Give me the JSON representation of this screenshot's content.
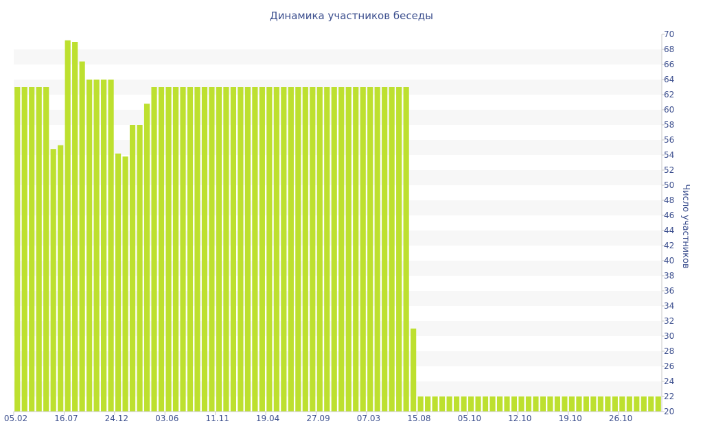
{
  "chart_data": {
    "type": "bar",
    "title": "Динамика участников беседы",
    "ylabel": "Число участников",
    "xlabel": "",
    "ylim": [
      20,
      70
    ],
    "y_tick_step": 2,
    "y_axis_position": "right",
    "grid": "alternating horizontal bands",
    "x_tick_labels": [
      {
        "index": 0,
        "label": "05.02"
      },
      {
        "index": 7,
        "label": "16.07"
      },
      {
        "index": 14,
        "label": "24.12"
      },
      {
        "index": 21,
        "label": "03.06"
      },
      {
        "index": 28,
        "label": "11.11"
      },
      {
        "index": 35,
        "label": "19.04"
      },
      {
        "index": 42,
        "label": "27.09"
      },
      {
        "index": 49,
        "label": "07.03"
      },
      {
        "index": 56,
        "label": "15.08"
      },
      {
        "index": 63,
        "label": "05.10"
      },
      {
        "index": 70,
        "label": "12.10"
      },
      {
        "index": 77,
        "label": "19.10"
      },
      {
        "index": 84,
        "label": "26.10"
      }
    ],
    "values": [
      63,
      63,
      63,
      63,
      63,
      54.8,
      55.3,
      69.2,
      69,
      66.4,
      64,
      64,
      64,
      64,
      54.2,
      53.8,
      58,
      58,
      60.8,
      63,
      63,
      63,
      63,
      63,
      63,
      63,
      63,
      63,
      63,
      63,
      63,
      63,
      63,
      63,
      63,
      63,
      63,
      63,
      63,
      63,
      63,
      63,
      63,
      63,
      63,
      63,
      63,
      63,
      63,
      63,
      63,
      63,
      63,
      63,
      63,
      31,
      22,
      22,
      22,
      22,
      22,
      22,
      22,
      22,
      22,
      22,
      22,
      22,
      22,
      22,
      22,
      22,
      22,
      22,
      22,
      22,
      22,
      22,
      22,
      22,
      22,
      22,
      22,
      22,
      22,
      22,
      22,
      22,
      22,
      22
    ],
    "colors": {
      "bar": "#bde02f",
      "band": "#f7f7f7",
      "text": "#3c4f8e",
      "axis": "#c8c8c8"
    }
  }
}
